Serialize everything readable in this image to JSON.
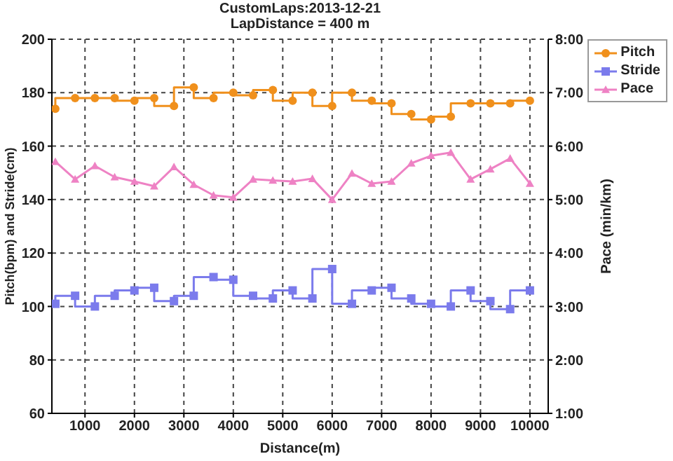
{
  "chart_data": {
    "type": "line",
    "title": "CustomLaps:2013-12-21",
    "subtitle": "LapDistance = 400 m",
    "xlabel": "Distance(m)",
    "ylabel": "Pitch(bpm) and Stride(cm)",
    "y2label": "Pace (min/km)",
    "x": [
      400,
      800,
      1200,
      1600,
      2000,
      2400,
      2800,
      3200,
      3600,
      4000,
      4400,
      4800,
      5200,
      5600,
      6000,
      6400,
      6800,
      7200,
      7600,
      8000,
      8400,
      8800,
      9200,
      9600,
      10000
    ],
    "series": [
      {
        "name": "Pitch",
        "type": "step",
        "marker": "circle",
        "color": "#f0901c",
        "values": [
          174,
          178,
          178,
          178,
          177,
          178,
          175,
          182,
          178,
          180,
          179,
          181,
          177,
          180,
          175,
          180,
          177,
          176,
          172,
          170,
          171,
          176,
          176,
          176,
          177
        ]
      },
      {
        "name": "Stride",
        "type": "step",
        "marker": "square",
        "color": "#7b7bec",
        "values": [
          101,
          104,
          100,
          104,
          106,
          107,
          102,
          104,
          111,
          110,
          104,
          103,
          106,
          103,
          114,
          101,
          106,
          107,
          103,
          101,
          100,
          106,
          102,
          99,
          106
        ]
      },
      {
        "name": "Pace",
        "type": "line",
        "marker": "triangle",
        "axis": "y2",
        "color": "#ee82c4",
        "values": [
          5.71,
          5.38,
          5.63,
          5.42,
          5.34,
          5.25,
          5.61,
          5.28,
          5.08,
          5.04,
          5.38,
          5.36,
          5.34,
          5.39,
          5.0,
          5.49,
          5.3,
          5.34,
          5.68,
          5.82,
          5.88,
          5.38,
          5.57,
          5.77,
          5.3
        ]
      }
    ],
    "xlim": [
      330,
      10370
    ],
    "xticks": [
      1000,
      2000,
      3000,
      4000,
      5000,
      6000,
      7000,
      8000,
      9000,
      10000
    ],
    "ylim": [
      60,
      200
    ],
    "yticks": [
      60,
      80,
      100,
      120,
      140,
      160,
      180,
      200
    ],
    "y2lim": [
      1,
      8
    ],
    "y2ticks": [
      {
        "value": 1,
        "label": "1:00"
      },
      {
        "value": 2,
        "label": "2:00"
      },
      {
        "value": 3,
        "label": "3:00"
      },
      {
        "value": 4,
        "label": "4:00"
      },
      {
        "value": 5,
        "label": "5:00"
      },
      {
        "value": 6,
        "label": "6:00"
      },
      {
        "value": 7,
        "label": "7:00"
      },
      {
        "value": 8,
        "label": "8:00"
      }
    ],
    "grid": true,
    "legend": "top right"
  }
}
